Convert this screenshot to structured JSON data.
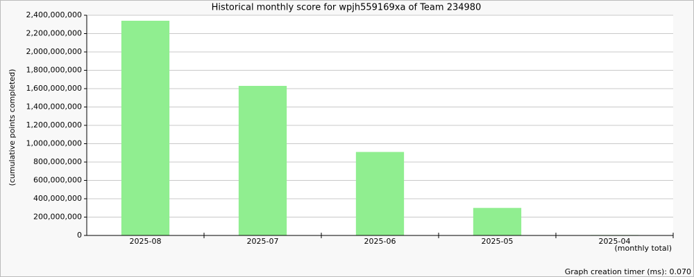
{
  "chart_data": {
    "type": "bar",
    "title": "Historical monthly score for wpjh559169xa of Team 234980",
    "y_label": "(cumulative points completed)",
    "x_label": "(monthly total)",
    "footer": "Graph creation timer (ms): 0.070",
    "categories": [
      "2025-08",
      "2025-07",
      "2025-06",
      "2025-05",
      "2025-04"
    ],
    "values": [
      2340000000,
      1630000000,
      910000000,
      300000000,
      5000000
    ],
    "color": "#90ee90",
    "ylim": [
      0,
      2400000000
    ],
    "yticks": [
      0,
      {
        "value": 200000000,
        "label": "200,000,000"
      },
      {
        "value": 400000000,
        "label": "400,000,000"
      },
      {
        "value": 600000000,
        "label": "600,000,000"
      },
      {
        "value": 800000000,
        "label": "800,000,000"
      },
      {
        "value": 1000000000,
        "label": "1,000,000,000"
      },
      {
        "value": 1200000000,
        "label": "1,200,000,000"
      },
      {
        "value": 1400000000,
        "label": "1,400,000,000"
      },
      {
        "value": 1600000000,
        "label": "1,600,000,000"
      },
      {
        "value": 1800000000,
        "label": "1,800,000,000"
      },
      {
        "value": 2000000000,
        "label": "2,000,000,000"
      },
      {
        "value": 2200000000,
        "label": "2,200,000,000"
      },
      {
        "value": 2400000000,
        "label": "2,400,000,000"
      }
    ],
    "grid": true
  }
}
